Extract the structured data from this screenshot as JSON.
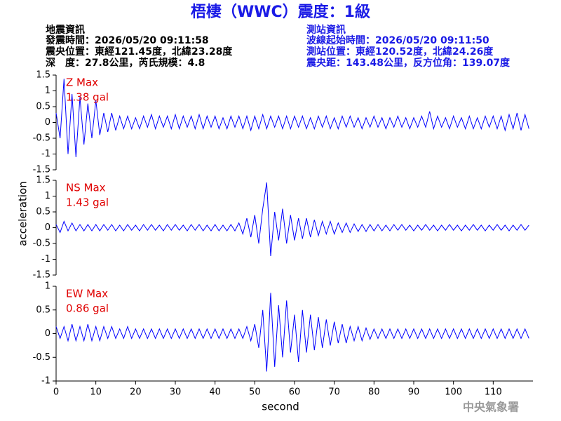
{
  "header": {
    "title": "梧棲（WWC）震度：1級",
    "left": [
      "地震資訊",
      "發震時間：2026/05/20 09:11:58",
      "震央位置：東經121.45度，北緯23.28度",
      "深　度：27.8公里，芮氏規模：4.8"
    ],
    "right": [
      "測站資訊",
      "波線起始時間：2026/05/20 09:11:50",
      "測站位置：東經120.52度，北緯24.26度",
      "震央距：143.48公里，反方位角：139.07度"
    ]
  },
  "footer": "中央氣象署",
  "chart_data": [
    {
      "type": "line",
      "annotations": [
        "Z Max",
        "1.38 gal"
      ],
      "color": "#0000ff",
      "xlim": [
        0,
        120
      ],
      "ylim": [
        -1.5,
        1.5
      ],
      "yticks": [
        1.5,
        1,
        0.5,
        0,
        -0.5,
        -1,
        -1.5
      ],
      "x": [
        0,
        1,
        2,
        3,
        4,
        5,
        6,
        7,
        8,
        9,
        10,
        11,
        12,
        13,
        14,
        15,
        16,
        17,
        18,
        19,
        20,
        21,
        22,
        23,
        24,
        25,
        26,
        27,
        28,
        29,
        30,
        31,
        32,
        33,
        34,
        35,
        36,
        37,
        38,
        39,
        40,
        41,
        42,
        43,
        44,
        45,
        46,
        47,
        48,
        49,
        50,
        51,
        52,
        53,
        54,
        55,
        56,
        57,
        58,
        59,
        60,
        61,
        62,
        63,
        64,
        65,
        66,
        67,
        68,
        69,
        70,
        71,
        72,
        73,
        74,
        75,
        76,
        77,
        78,
        79,
        80,
        81,
        82,
        83,
        84,
        85,
        86,
        87,
        88,
        89,
        90,
        91,
        92,
        93,
        94,
        95,
        96,
        97,
        98,
        99,
        100,
        101,
        102,
        103,
        104,
        105,
        106,
        107,
        108,
        109,
        110,
        111,
        112,
        113,
        114,
        115,
        116,
        117,
        118,
        119
      ],
      "values": [
        0.3,
        -0.5,
        1.38,
        -1.0,
        0.9,
        -1.1,
        0.8,
        -0.7,
        0.6,
        -0.5,
        0.7,
        -0.4,
        0.3,
        -0.3,
        0.3,
        -0.25,
        0.2,
        -0.2,
        0.2,
        -0.2,
        0.15,
        -0.2,
        0.2,
        -0.15,
        0.25,
        -0.2,
        0.2,
        -0.15,
        0.2,
        -0.2,
        0.25,
        -0.2,
        0.2,
        -0.15,
        0.2,
        -0.2,
        0.25,
        -0.2,
        0.2,
        -0.15,
        0.2,
        -0.2,
        0.15,
        -0.2,
        0.2,
        -0.15,
        0.2,
        -0.2,
        0.2,
        -0.25,
        0.2,
        -0.2,
        0.25,
        -0.2,
        0.2,
        -0.15,
        0.2,
        -0.2,
        0.2,
        -0.2,
        0.2,
        -0.15,
        0.2,
        -0.2,
        0.15,
        -0.2,
        0.2,
        -0.15,
        0.2,
        -0.2,
        0.15,
        -0.2,
        0.2,
        -0.15,
        0.2,
        -0.15,
        0.15,
        -0.2,
        0.15,
        -0.15,
        0.2,
        -0.15,
        0.15,
        -0.2,
        0.15,
        -0.15,
        0.2,
        -0.15,
        0.15,
        -0.2,
        0.15,
        -0.15,
        0.2,
        -0.15,
        0.35,
        -0.2,
        0.2,
        -0.15,
        0.15,
        -0.2,
        0.2,
        -0.15,
        0.15,
        -0.2,
        0.2,
        -0.2,
        0.15,
        -0.2,
        0.2,
        -0.15,
        0.2,
        -0.2,
        0.2,
        -0.25,
        0.25,
        -0.2,
        0.3,
        -0.25,
        0.25,
        -0.2
      ]
    },
    {
      "type": "line",
      "annotations": [
        "NS Max",
        "1.43 gal"
      ],
      "ylabel": "acceleration",
      "color": "#0000ff",
      "xlim": [
        0,
        120
      ],
      "ylim": [
        -1.5,
        1.5
      ],
      "yticks": [
        1.5,
        1,
        0.5,
        0,
        -0.5,
        -1,
        -1.5
      ],
      "x": [
        0,
        1,
        2,
        3,
        4,
        5,
        6,
        7,
        8,
        9,
        10,
        11,
        12,
        13,
        14,
        15,
        16,
        17,
        18,
        19,
        20,
        21,
        22,
        23,
        24,
        25,
        26,
        27,
        28,
        29,
        30,
        31,
        32,
        33,
        34,
        35,
        36,
        37,
        38,
        39,
        40,
        41,
        42,
        43,
        44,
        45,
        46,
        47,
        48,
        49,
        50,
        51,
        52,
        53,
        54,
        55,
        56,
        57,
        58,
        59,
        60,
        61,
        62,
        63,
        64,
        65,
        66,
        67,
        68,
        69,
        70,
        71,
        72,
        73,
        74,
        75,
        76,
        77,
        78,
        79,
        80,
        81,
        82,
        83,
        84,
        85,
        86,
        87,
        88,
        89,
        90,
        91,
        92,
        93,
        94,
        95,
        96,
        97,
        98,
        99,
        100,
        101,
        102,
        103,
        104,
        105,
        106,
        107,
        108,
        109,
        110,
        111,
        112,
        113,
        114,
        115,
        116,
        117,
        118,
        119
      ],
      "values": [
        0.1,
        -0.15,
        0.2,
        -0.1,
        0.15,
        -0.1,
        0.1,
        -0.1,
        0.1,
        -0.1,
        0.1,
        -0.1,
        0.1,
        -0.08,
        0.1,
        -0.1,
        0.08,
        -0.1,
        0.1,
        -0.08,
        0.08,
        -0.1,
        0.1,
        -0.08,
        0.1,
        -0.08,
        0.08,
        -0.1,
        0.1,
        -0.08,
        0.1,
        -0.08,
        0.08,
        -0.1,
        0.1,
        -0.08,
        0.1,
        -0.1,
        0.08,
        -0.1,
        0.1,
        -0.1,
        0.08,
        -0.1,
        0.1,
        -0.1,
        0.15,
        -0.2,
        0.3,
        -0.3,
        0.4,
        -0.5,
        0.6,
        1.43,
        -0.9,
        0.5,
        -0.4,
        0.6,
        -0.5,
        0.4,
        -0.4,
        0.3,
        -0.35,
        0.3,
        -0.3,
        0.25,
        -0.25,
        0.2,
        -0.2,
        0.2,
        -0.2,
        0.15,
        -0.15,
        0.15,
        -0.15,
        0.12,
        -0.12,
        0.1,
        -0.12,
        0.1,
        -0.1,
        0.1,
        -0.1,
        0.08,
        -0.1,
        0.1,
        -0.08,
        0.1,
        -0.08,
        0.08,
        -0.1,
        0.08,
        -0.08,
        0.1,
        -0.08,
        0.08,
        -0.1,
        0.08,
        -0.08,
        0.1,
        -0.08,
        0.08,
        -0.1,
        0.08,
        -0.08,
        0.1,
        -0.08,
        0.08,
        -0.1,
        0.08,
        -0.08,
        0.1,
        -0.08,
        0.08,
        -0.1,
        0.08,
        -0.08,
        0.1,
        -0.08,
        0.08
      ]
    },
    {
      "type": "line",
      "annotations": [
        "EW Max",
        "0.86 gal"
      ],
      "xlabel": "second",
      "color": "#0000ff",
      "xlim": [
        0,
        120
      ],
      "xticks": [
        0,
        10,
        20,
        30,
        40,
        50,
        60,
        70,
        80,
        90,
        100,
        110
      ],
      "ylim": [
        -1,
        1
      ],
      "yticks": [
        1,
        0.5,
        0,
        -0.5,
        -1
      ],
      "x": [
        0,
        1,
        2,
        3,
        4,
        5,
        6,
        7,
        8,
        9,
        10,
        11,
        12,
        13,
        14,
        15,
        16,
        17,
        18,
        19,
        20,
        21,
        22,
        23,
        24,
        25,
        26,
        27,
        28,
        29,
        30,
        31,
        32,
        33,
        34,
        35,
        36,
        37,
        38,
        39,
        40,
        41,
        42,
        43,
        44,
        45,
        46,
        47,
        48,
        49,
        50,
        51,
        52,
        53,
        54,
        55,
        56,
        57,
        58,
        59,
        60,
        61,
        62,
        63,
        64,
        65,
        66,
        67,
        68,
        69,
        70,
        71,
        72,
        73,
        74,
        75,
        76,
        77,
        78,
        79,
        80,
        81,
        82,
        83,
        84,
        85,
        86,
        87,
        88,
        89,
        90,
        91,
        92,
        93,
        94,
        95,
        96,
        97,
        98,
        99,
        100,
        101,
        102,
        103,
        104,
        105,
        106,
        107,
        108,
        109,
        110,
        111,
        112,
        113,
        114,
        115,
        116,
        117,
        118,
        119
      ],
      "values": [
        0.15,
        -0.1,
        0.15,
        -0.15,
        0.2,
        -0.15,
        0.15,
        -0.15,
        0.2,
        -0.15,
        0.15,
        -0.15,
        0.15,
        -0.1,
        0.15,
        -0.1,
        0.1,
        -0.1,
        0.15,
        -0.1,
        0.1,
        -0.1,
        0.1,
        -0.1,
        0.1,
        -0.1,
        0.1,
        -0.1,
        0.1,
        -0.1,
        0.1,
        -0.1,
        0.1,
        -0.1,
        0.1,
        -0.1,
        0.1,
        -0.1,
        0.1,
        -0.1,
        0.1,
        -0.1,
        0.1,
        -0.1,
        0.1,
        -0.1,
        0.1,
        -0.1,
        0.15,
        -0.15,
        0.2,
        -0.3,
        0.5,
        -0.8,
        0.86,
        -0.7,
        0.6,
        -0.5,
        0.7,
        -0.4,
        0.4,
        -0.6,
        0.5,
        -0.4,
        0.4,
        -0.35,
        0.35,
        -0.3,
        0.3,
        -0.25,
        0.25,
        -0.2,
        0.2,
        -0.2,
        0.15,
        -0.15,
        0.15,
        -0.15,
        0.12,
        -0.12,
        0.1,
        -0.1,
        0.1,
        -0.1,
        0.1,
        -0.1,
        0.1,
        -0.1,
        0.1,
        -0.1,
        0.1,
        -0.1,
        0.1,
        -0.1,
        0.1,
        -0.1,
        0.1,
        -0.1,
        0.1,
        -0.1,
        0.1,
        -0.1,
        0.1,
        -0.1,
        0.1,
        -0.1,
        0.1,
        -0.1,
        0.1,
        -0.1,
        0.1,
        -0.1,
        0.1,
        -0.1,
        0.1,
        -0.1,
        0.1,
        -0.1,
        0.1,
        -0.1
      ]
    }
  ]
}
